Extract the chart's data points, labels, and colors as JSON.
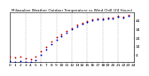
{
  "title": "Milwaukee Weather Outdoor Temperature vs Wind Chill (24 Hours)",
  "title_fontsize": 3.0,
  "background_color": "#ffffff",
  "xlim": [
    0,
    24
  ],
  "ylim": [
    -4,
    54
  ],
  "yticks": [
    4,
    14,
    24,
    34,
    44
  ],
  "ytick_labels": [
    "4",
    "14",
    "24",
    "34",
    "44"
  ],
  "grid_x_positions": [
    0,
    3,
    6,
    9,
    12,
    15,
    18,
    21,
    24
  ],
  "temp_color": "#cc0000",
  "windchill_color": "#0000cc",
  "temp_x": [
    0,
    1,
    2,
    3,
    4,
    5,
    6,
    7,
    8,
    9,
    10,
    11,
    12,
    13,
    14,
    15,
    16,
    17,
    18,
    19,
    20,
    21,
    22,
    23
  ],
  "temp_y": [
    2,
    1,
    2,
    0,
    -1,
    2,
    8,
    14,
    20,
    25,
    28,
    32,
    36,
    40,
    42,
    44,
    46,
    47,
    47,
    48,
    48,
    50,
    49,
    51
  ],
  "wc_x": [
    0,
    1,
    2,
    3,
    4,
    5,
    6,
    7,
    8,
    9,
    10,
    11,
    12,
    13,
    14,
    15,
    16,
    17,
    18,
    19,
    20,
    21,
    22,
    23
  ],
  "wc_y": [
    -3,
    -4,
    -3,
    -4,
    -4,
    -2,
    4,
    10,
    17,
    22,
    26,
    30,
    34,
    38,
    41,
    43,
    45,
    46,
    46,
    47,
    47,
    49,
    48,
    50
  ],
  "marker_size": 1.8,
  "tick_fontsize": 3.2,
  "xtick_every": 1
}
